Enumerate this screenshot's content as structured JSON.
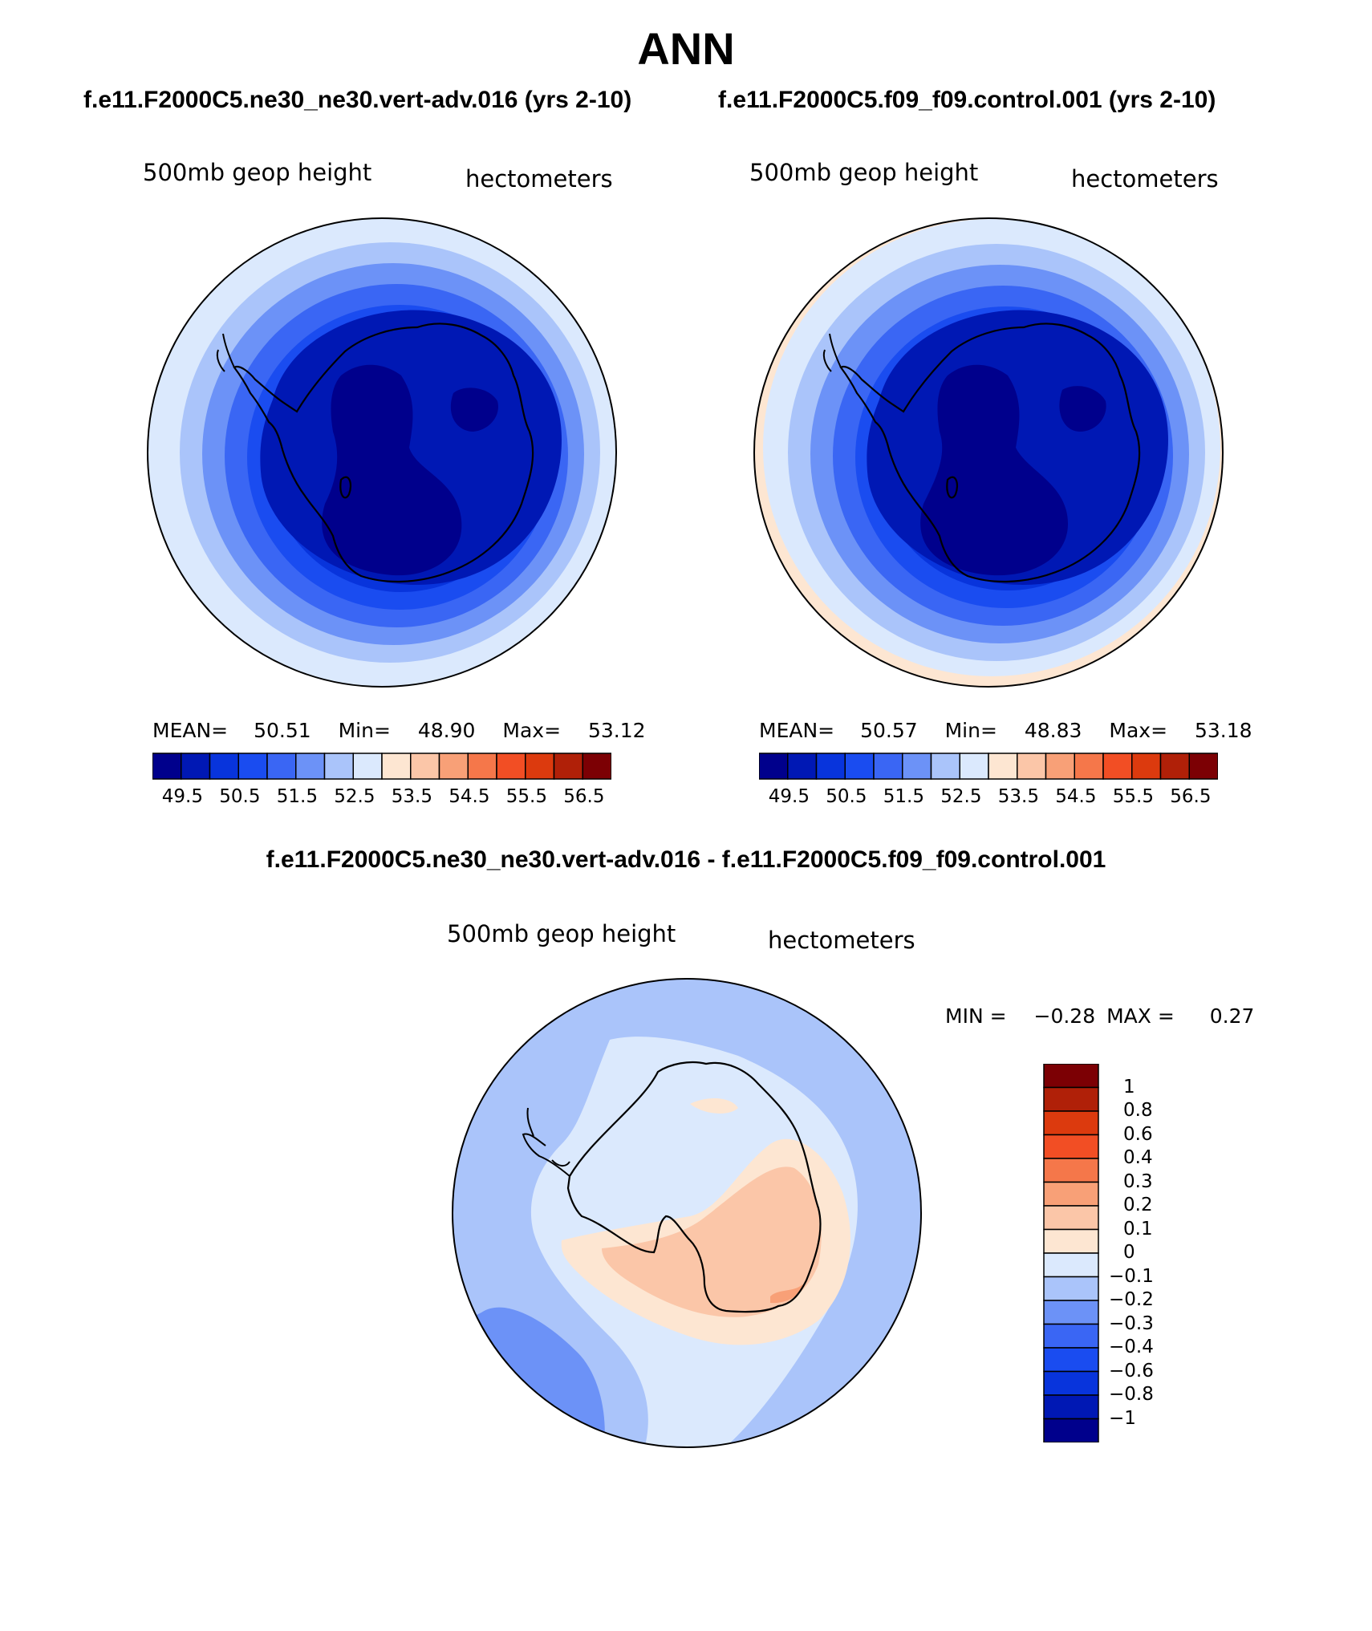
{
  "page_title": "ANN",
  "colors": {
    "c1": "#00008c",
    "c2": "#0018b4",
    "c3": "#0834dc",
    "c4": "#1a4cf0",
    "c5": "#3a66f4",
    "c6": "#6c92f7",
    "c7": "#aac4fa",
    "c8": "#dbe9fd",
    "w1": "#fde6d2",
    "w2": "#fbc6a8",
    "w3": "#f8a077",
    "w4": "#f5774a",
    "w5": "#f24e24",
    "w6": "#dc3a0e",
    "w7": "#b02008",
    "w8": "#7c0004"
  },
  "chart_data": [
    {
      "type": "heatmap",
      "case_title": "f.e11.F2000C5.ne30_ne30.vert-adv.016 (yrs 2-10)",
      "variable": "500mb geop height",
      "units": "hectometers",
      "stats": {
        "mean_label": "MEAN=",
        "mean": "50.51",
        "min_label": "Min=",
        "min": "48.90",
        "max_label": "Max=",
        "max": "53.12"
      },
      "levels": [
        "49.5",
        "50.5",
        "51.5",
        "52.5",
        "53.5",
        "54.5",
        "55.5",
        "56.5"
      ],
      "region": "Antarctica (south polar stereographic)"
    },
    {
      "type": "heatmap",
      "case_title": "f.e11.F2000C5.f09_f09.control.001 (yrs 2-10)",
      "variable": "500mb geop height",
      "units": "hectometers",
      "stats": {
        "mean_label": "MEAN=",
        "mean": "50.57",
        "min_label": "Min=",
        "min": "48.83",
        "max_label": "Max=",
        "max": "53.18"
      },
      "levels": [
        "49.5",
        "50.5",
        "51.5",
        "52.5",
        "53.5",
        "54.5",
        "55.5",
        "56.5"
      ],
      "region": "Antarctica (south polar stereographic)"
    },
    {
      "type": "heatmap",
      "case_title": "f.e11.F2000C5.ne30_ne30.vert-adv.016 - f.e11.F2000C5.f09_f09.control.001",
      "variable": "500mb geop height",
      "units": "hectometers",
      "stats": {
        "min_label": "MIN =",
        "min": "−0.28",
        "max_label": "MAX =",
        "max": "0.27"
      },
      "levels": [
        "1",
        "0.8",
        "0.6",
        "0.4",
        "0.3",
        "0.2",
        "0.1",
        "0",
        "−0.1",
        "−0.2",
        "−0.3",
        "−0.4",
        "−0.6",
        "−0.8",
        "−1"
      ],
      "region": "Antarctica (south polar stereographic)"
    }
  ]
}
